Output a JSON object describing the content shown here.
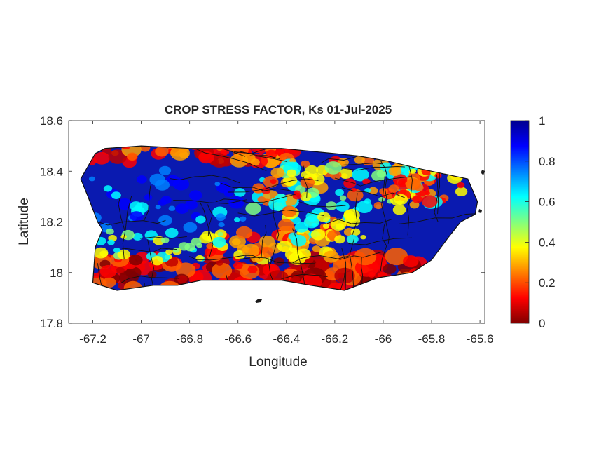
{
  "map": {
    "title": "CROP STRESS FACTOR, Ks  01-Jul-2025",
    "xlabel": "Longitude",
    "ylabel": "Latitude",
    "xlim": [
      -67.3,
      -65.58
    ],
    "ylim": [
      17.8,
      18.6
    ],
    "x_ticks": [
      -67.2,
      -67,
      -66.8,
      -66.6,
      -66.4,
      -66.2,
      -66,
      -65.8,
      -65.6
    ],
    "y_ticks": [
      17.8,
      18,
      18.2,
      18.4,
      18.6
    ],
    "x_tick_labels": [
      "-67.2",
      "-67",
      "-66.8",
      "-66.6",
      "-66.4",
      "-66.2",
      "-66",
      "-65.8",
      "-65.6"
    ],
    "y_tick_labels": [
      "17.8",
      "18",
      "18.2",
      "18.4",
      "18.6"
    ],
    "region_outline": [
      [
        -67.25,
        18.37
      ],
      [
        -67.19,
        18.47
      ],
      [
        -67.15,
        18.49
      ],
      [
        -67.0,
        18.5
      ],
      [
        -66.8,
        18.49
      ],
      [
        -66.6,
        18.49
      ],
      [
        -66.42,
        18.49
      ],
      [
        -66.2,
        18.47
      ],
      [
        -66.1,
        18.46
      ],
      [
        -65.98,
        18.44
      ],
      [
        -65.85,
        18.41
      ],
      [
        -65.75,
        18.39
      ],
      [
        -65.65,
        18.37
      ],
      [
        -65.61,
        18.28
      ],
      [
        -65.62,
        18.23
      ],
      [
        -65.68,
        18.2
      ],
      [
        -65.73,
        18.14
      ],
      [
        -65.8,
        18.05
      ],
      [
        -65.88,
        18.0
      ],
      [
        -66.02,
        17.98
      ],
      [
        -66.16,
        17.93
      ],
      [
        -66.3,
        17.95
      ],
      [
        -66.42,
        17.97
      ],
      [
        -66.55,
        17.97
      ],
      [
        -66.75,
        17.97
      ],
      [
        -66.85,
        17.95
      ],
      [
        -66.95,
        17.95
      ],
      [
        -67.1,
        17.93
      ],
      [
        -67.2,
        17.96
      ],
      [
        -67.19,
        18.1
      ],
      [
        -67.16,
        18.17
      ],
      [
        -67.18,
        18.2
      ],
      [
        -67.22,
        18.3
      ]
    ]
  },
  "colorbar": {
    "range": [
      0,
      1
    ],
    "ticks": [
      0,
      0.2,
      0.4,
      0.6,
      0.8,
      1
    ],
    "tick_labels": [
      "0",
      "0.2",
      "0.4",
      "0.6",
      "0.8",
      "1"
    ],
    "colormap": "jet"
  }
}
